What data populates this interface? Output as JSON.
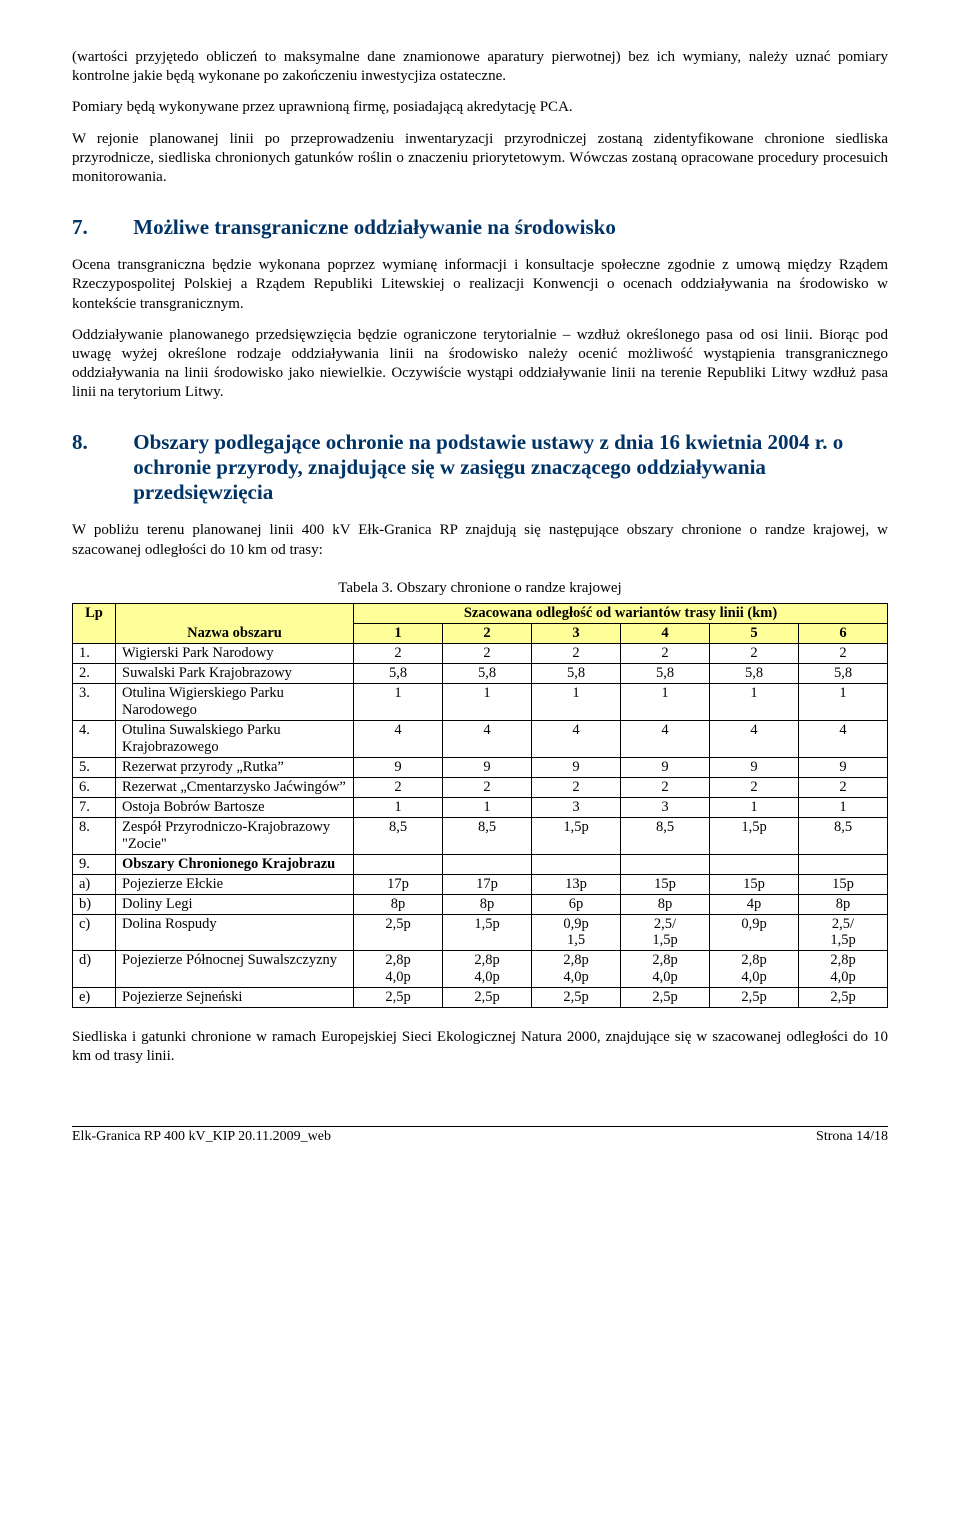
{
  "para1": "(wartości przyjętedo obliczeń to maksymalne dane znamionowe aparatury pierwotnej) bez ich wymiany, należy uznać pomiary kontrolne jakie będą wykonane po zakończeniu inwestycjiza ostateczne.",
  "para2": "Pomiary będą wykonywane przez uprawnioną firmę, posiadającą akredytację PCA.",
  "para3": "W rejonie planowanej linii po przeprowadzeniu inwentaryzacji przyrodniczej zostaną zidentyfikowane chronione siedliska przyrodnicze, siedliska chronionych gatunków roślin o znaczeniu priorytetowym. Wówczas zostaną opracowane procedury procesuich monitorowania.",
  "sec7": {
    "num": "7.",
    "title": "Możliwe transgraniczne oddziaływanie na środowisko"
  },
  "para4": "Ocena transgraniczna będzie wykonana poprzez wymianę informacji i konsultacje społeczne zgodnie z umową między Rządem Rzeczypospolitej Polskiej a Rządem Republiki Litewskiej o realizacji Konwencji o ocenach oddziaływania na środowisko w kontekście transgranicznym.",
  "para5": "Oddziaływanie planowanego przedsięwzięcia będzie ograniczone terytorialnie – wzdłuż określonego pasa od osi linii. Biorąc pod uwagę wyżej określone rodzaje oddziaływania linii na środowisko należy ocenić możliwość wystąpienia transgranicznego oddziaływania na linii środowisko jako niewielkie. Oczywiście wystąpi oddziaływanie linii na terenie Republiki Litwy wzdłuż pasa linii na terytorium Litwy.",
  "sec8": {
    "num": "8.",
    "title": "Obszary podlegające ochronie na podstawie ustawy z dnia 16 kwietnia 2004 r. o ochronie przyrody, znajdujące się w zasięgu znaczącego oddziaływania przedsięwzięcia"
  },
  "para6": "W pobliżu terenu planowanej linii 400 kV Ełk-Granica RP znajdują się następujące obszary chronione o randze krajowej, w szacowanej odległości do 10 km od trasy:",
  "tableCaption": "Tabela 3. Obszary chronione o randze krajowej",
  "table": {
    "headerColors": {
      "bg": "#ffff99"
    },
    "headerTop": {
      "lp": "Lp",
      "nazwa": "Nazwa obszaru",
      "span": "Szacowana odległość od wariantów trasy linii (km)"
    },
    "cols": [
      "1",
      "2",
      "3",
      "4",
      "5",
      "6"
    ],
    "rows": [
      {
        "lp": "1.",
        "name": "Wigierski Park Narodowy",
        "v": [
          "2",
          "2",
          "2",
          "2",
          "2",
          "2"
        ]
      },
      {
        "lp": "2.",
        "name": "Suwalski Park Krajobrazowy",
        "v": [
          "5,8",
          "5,8",
          "5,8",
          "5,8",
          "5,8",
          "5,8"
        ]
      },
      {
        "lp": "3.",
        "name": "Otulina Wigierskiego Parku Narodowego",
        "v": [
          "1",
          "1",
          "1",
          "1",
          "1",
          "1"
        ]
      },
      {
        "lp": "4.",
        "name": "Otulina Suwalskiego Parku Krajobrazowego",
        "v": [
          "4",
          "4",
          "4",
          "4",
          "4",
          "4"
        ]
      },
      {
        "lp": "5.",
        "name": "Rezerwat przyrody „Rutka”",
        "v": [
          "9",
          "9",
          "9",
          "9",
          "9",
          "9"
        ]
      },
      {
        "lp": "6.",
        "name": "Rezerwat „Cmentarzysko Jaćwingów”",
        "v": [
          "2",
          "2",
          "2",
          "2",
          "2",
          "2"
        ]
      },
      {
        "lp": "7.",
        "name": "Ostoja Bobrów Bartosze",
        "v": [
          "1",
          "1",
          "3",
          "3",
          "1",
          "1"
        ]
      },
      {
        "lp": "8.",
        "name": "Zespół Przyrodniczo-Krajobrazowy \"Zocie\"",
        "v": [
          "8,5",
          "8,5",
          "1,5p",
          "8,5",
          "1,5p",
          "8,5"
        ]
      },
      {
        "lp": "9.",
        "name": "Obszary Chronionego Krajobrazu",
        "v": [
          "",
          "",
          "",
          "",
          "",
          ""
        ],
        "bold": true
      },
      {
        "lp": "a)",
        "name": "Pojezierze Ełckie",
        "v": [
          "17p",
          "17p",
          "13p",
          "15p",
          "15p",
          "15p"
        ]
      },
      {
        "lp": "b)",
        "name": "Doliny Legi",
        "v": [
          "8p",
          "8p",
          "6p",
          "8p",
          "4p",
          "8p"
        ]
      },
      {
        "lp": "c)",
        "name": "Dolina Rospudy",
        "v": [
          "2,5p",
          "1,5p",
          "0,9p\n1,5",
          "2,5/\n1,5p",
          "0,9p",
          "2,5/\n1,5p"
        ]
      },
      {
        "lp": "d)",
        "name": "Pojezierze Północnej Suwalszczyzny",
        "v": [
          "2,8p\n4,0p",
          "2,8p\n4,0p",
          "2,8p\n4,0p",
          "2,8p\n4,0p",
          "2,8p\n4,0p",
          "2,8p\n4,0p"
        ]
      },
      {
        "lp": "e)",
        "name": "Pojezierze Sejneński",
        "v": [
          "2,5p",
          "2,5p",
          "2,5p",
          "2,5p",
          "2,5p",
          "2,5p"
        ]
      }
    ]
  },
  "para7": "Siedliska i gatunki chronione w ramach Europejskiej Sieci Ekologicznej Natura 2000, znajdujące się w szacowanej odległości do 10 km od trasy linii.",
  "footer": {
    "left": "Elk-Granica RP 400 kV_KIP 20.11.2009_web",
    "right": "Strona 14/18"
  }
}
